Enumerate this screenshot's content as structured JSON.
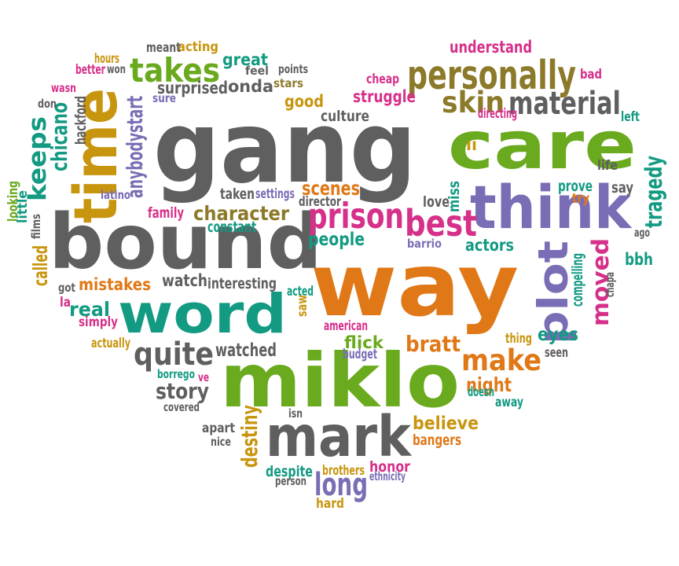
{
  "palette": {
    "gray": "#5f5f5f",
    "green": "#6aaa1e",
    "orange": "#e07817",
    "purple": "#7a6db5",
    "teal": "#139a82",
    "magenta": "#d6308a",
    "gold": "#c8950f",
    "olive": "#8c7a2a"
  },
  "words": [
    {
      "text": "gang",
      "color": "gray",
      "rot": 0
    },
    {
      "text": "bound",
      "color": "gray",
      "rot": 0
    },
    {
      "text": "way",
      "color": "orange",
      "rot": 0
    },
    {
      "text": "miklo",
      "color": "green",
      "rot": 0
    },
    {
      "text": "care",
      "color": "green",
      "rot": 0
    },
    {
      "text": "think",
      "color": "purple",
      "rot": 0
    },
    {
      "text": "word",
      "color": "teal",
      "rot": 0
    },
    {
      "text": "mark",
      "color": "gray",
      "rot": 0
    },
    {
      "text": "time",
      "color": "gold",
      "rot": -90
    },
    {
      "text": "personally",
      "color": "olive",
      "rot": 0
    },
    {
      "text": "plot",
      "color": "purple",
      "rot": -90
    },
    {
      "text": "takes",
      "color": "green",
      "rot": 0
    },
    {
      "text": "prison",
      "color": "magenta",
      "rot": 0
    },
    {
      "text": "best",
      "color": "magenta",
      "rot": 0
    },
    {
      "text": "material",
      "color": "gray",
      "rot": 0
    },
    {
      "text": "skin",
      "color": "olive",
      "rot": 0
    },
    {
      "text": "keeps",
      "color": "teal",
      "rot": -90
    },
    {
      "text": "quite",
      "color": "gray",
      "rot": 0
    },
    {
      "text": "make",
      "color": "orange",
      "rot": 0
    },
    {
      "text": "long",
      "color": "purple",
      "rot": 0
    },
    {
      "text": "moved",
      "color": "magenta",
      "rot": -90
    },
    {
      "text": "character",
      "color": "olive",
      "rot": 0
    },
    {
      "text": "story",
      "color": "gray",
      "rot": 0
    },
    {
      "text": "believe",
      "color": "gold",
      "rot": 0
    },
    {
      "text": "night",
      "color": "orange",
      "rot": 0
    },
    {
      "text": "bratt",
      "color": "orange",
      "rot": 0
    },
    {
      "text": "tragedy",
      "color": "teal",
      "rot": -90
    },
    {
      "text": "scenes",
      "color": "orange",
      "rot": 0
    },
    {
      "text": "people",
      "color": "teal",
      "rot": 0
    },
    {
      "text": "actors",
      "color": "teal",
      "rot": 0
    },
    {
      "text": "eyes",
      "color": "teal",
      "rot": 0
    },
    {
      "text": "real",
      "color": "teal",
      "rot": 0
    },
    {
      "text": "watched",
      "color": "gray",
      "rot": 0
    },
    {
      "text": "understand",
      "color": "magenta",
      "rot": 0
    },
    {
      "text": "surprised",
      "color": "gray",
      "rot": 0
    },
    {
      "text": "onda",
      "color": "gray",
      "rot": 0
    },
    {
      "text": "great",
      "color": "teal",
      "rot": 0
    },
    {
      "text": "good",
      "color": "gold",
      "rot": 0
    },
    {
      "text": "struggle",
      "color": "magenta",
      "rot": 0
    },
    {
      "text": "culture",
      "color": "gray",
      "rot": 0
    },
    {
      "text": "mistakes",
      "color": "orange",
      "rot": 0
    },
    {
      "text": "watch",
      "color": "gray",
      "rot": 0
    },
    {
      "text": "interesting",
      "color": "gray",
      "rot": 0
    },
    {
      "text": "flick",
      "color": "green",
      "rot": 0
    },
    {
      "text": "bbh",
      "color": "teal",
      "rot": 0
    },
    {
      "text": "destiny",
      "color": "gold",
      "rot": -90
    },
    {
      "text": "chicano",
      "color": "teal",
      "rot": -90
    },
    {
      "text": "anybodystart",
      "color": "purple",
      "rot": -90
    },
    {
      "text": "called",
      "color": "gold",
      "rot": -90
    },
    {
      "text": "honor",
      "color": "magenta",
      "rot": 0
    },
    {
      "text": "bangers",
      "color": "orange",
      "rot": 0
    },
    {
      "text": "despite",
      "color": "teal",
      "rot": 0
    },
    {
      "text": "family",
      "color": "magenta",
      "rot": 0
    },
    {
      "text": "constant",
      "color": "teal",
      "rot": 0
    },
    {
      "text": "taken",
      "color": "gray",
      "rot": 0
    },
    {
      "text": "settings",
      "color": "purple",
      "rot": 0
    },
    {
      "text": "director",
      "color": "gray",
      "rot": 0
    },
    {
      "text": "love",
      "color": "gray",
      "rot": 0
    },
    {
      "text": "miss",
      "color": "teal",
      "rot": -90
    },
    {
      "text": "prove",
      "color": "teal",
      "rot": 0
    },
    {
      "text": "try",
      "color": "orange",
      "rot": 0
    },
    {
      "text": "say",
      "color": "gray",
      "rot": 0
    },
    {
      "text": "life",
      "color": "gray",
      "rot": 0
    },
    {
      "text": "left",
      "color": "teal",
      "rot": 0
    },
    {
      "text": "bad",
      "color": "magenta",
      "rot": 0
    },
    {
      "text": "cheap",
      "color": "magenta",
      "rot": 0
    },
    {
      "text": "directing",
      "color": "magenta",
      "rot": 0
    },
    {
      "text": "acting",
      "color": "gold",
      "rot": 0
    },
    {
      "text": "meant",
      "color": "gray",
      "rot": 0
    },
    {
      "text": "hours",
      "color": "gold",
      "rot": 0
    },
    {
      "text": "better",
      "color": "magenta",
      "rot": 0
    },
    {
      "text": "won",
      "color": "gray",
      "rot": 0
    },
    {
      "text": "feel",
      "color": "gray",
      "rot": 0
    },
    {
      "text": "points",
      "color": "gray",
      "rot": 0
    },
    {
      "text": "stars",
      "color": "olive",
      "rot": 0
    },
    {
      "text": "sure",
      "color": "purple",
      "rot": 0
    },
    {
      "text": "wasn",
      "color": "magenta",
      "rot": 0
    },
    {
      "text": "don",
      "color": "gray",
      "rot": 0
    },
    {
      "text": "hackford",
      "color": "gray",
      "rot": -90
    },
    {
      "text": "looking",
      "color": "green",
      "rot": -90
    },
    {
      "text": "little",
      "color": "teal",
      "rot": -90
    },
    {
      "text": "films",
      "color": "gray",
      "rot": -90
    },
    {
      "text": "latino",
      "color": "purple",
      "rot": 0
    },
    {
      "text": "got",
      "color": "gray",
      "rot": 0
    },
    {
      "text": "la",
      "color": "magenta",
      "rot": 0
    },
    {
      "text": "simply",
      "color": "magenta",
      "rot": 0
    },
    {
      "text": "actually",
      "color": "gold",
      "rot": 0
    },
    {
      "text": "acted",
      "color": "teal",
      "rot": 0
    },
    {
      "text": "saw",
      "color": "gold",
      "rot": -90
    },
    {
      "text": "american",
      "color": "magenta",
      "rot": 0
    },
    {
      "text": "budget",
      "color": "purple",
      "rot": 0
    },
    {
      "text": "borrego",
      "color": "teal",
      "rot": 0
    },
    {
      "text": "ve",
      "color": "magenta",
      "rot": 0
    },
    {
      "text": "covered",
      "color": "gray",
      "rot": 0
    },
    {
      "text": "apart",
      "color": "gray",
      "rot": 0
    },
    {
      "text": "nice",
      "color": "gray",
      "rot": 0
    },
    {
      "text": "isn",
      "color": "gray",
      "rot": 0
    },
    {
      "text": "brothers",
      "color": "gold",
      "rot": 0
    },
    {
      "text": "ethnicity",
      "color": "purple",
      "rot": 0
    },
    {
      "text": "person",
      "color": "gray",
      "rot": 0
    },
    {
      "text": "hard",
      "color": "gold",
      "rot": 0
    },
    {
      "text": "doesn",
      "color": "teal",
      "rot": 0
    },
    {
      "text": "away",
      "color": "teal",
      "rot": 0
    },
    {
      "text": "seen",
      "color": "gray",
      "rot": 0
    },
    {
      "text": "thing",
      "color": "gold",
      "rot": 0
    },
    {
      "text": "compelling",
      "color": "teal",
      "rot": -90
    },
    {
      "text": "chapa",
      "color": "gray",
      "rot": -90
    },
    {
      "text": "barrio",
      "color": "purple",
      "rot": 0
    },
    {
      "text": "ll",
      "color": "gold",
      "rot": 0
    },
    {
      "text": "ago",
      "color": "gray",
      "rot": 0
    }
  ]
}
